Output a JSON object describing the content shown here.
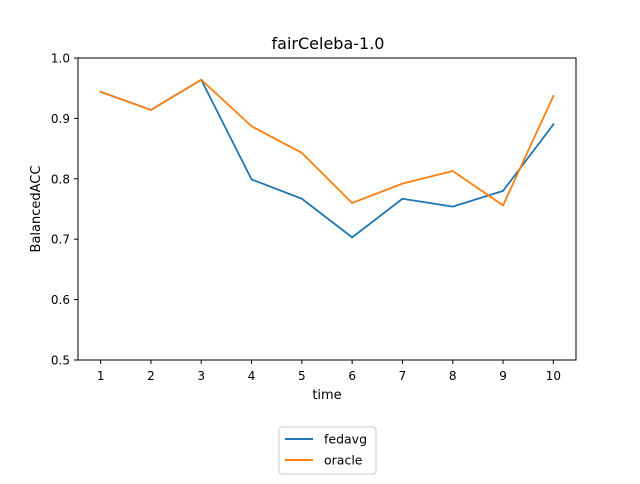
{
  "chart_data": {
    "type": "line",
    "title": "fairCeleba-1.0",
    "xlabel": "time",
    "ylabel": "BalancedACC",
    "x": [
      1,
      2,
      3,
      4,
      5,
      6,
      7,
      8,
      9,
      10
    ],
    "xticks": [
      "1",
      "2",
      "3",
      "4",
      "5",
      "6",
      "7",
      "8",
      "9",
      "10"
    ],
    "yticks": [
      "0.5",
      "0.6",
      "0.7",
      "0.8",
      "0.9",
      "1.0"
    ],
    "ylim": [
      0.5,
      1.0
    ],
    "xlim": [
      0.55,
      10.45
    ],
    "grid": false,
    "legend_position": "below-center",
    "series": [
      {
        "name": "fedavg",
        "color": "#1f77b4",
        "values": [
          0.944,
          0.914,
          0.964,
          0.799,
          0.767,
          0.703,
          0.767,
          0.754,
          0.78,
          0.89
        ]
      },
      {
        "name": "oracle",
        "color": "#ff7f0e",
        "values": [
          0.944,
          0.914,
          0.964,
          0.887,
          0.843,
          0.76,
          0.792,
          0.813,
          0.756,
          0.937
        ]
      }
    ]
  }
}
